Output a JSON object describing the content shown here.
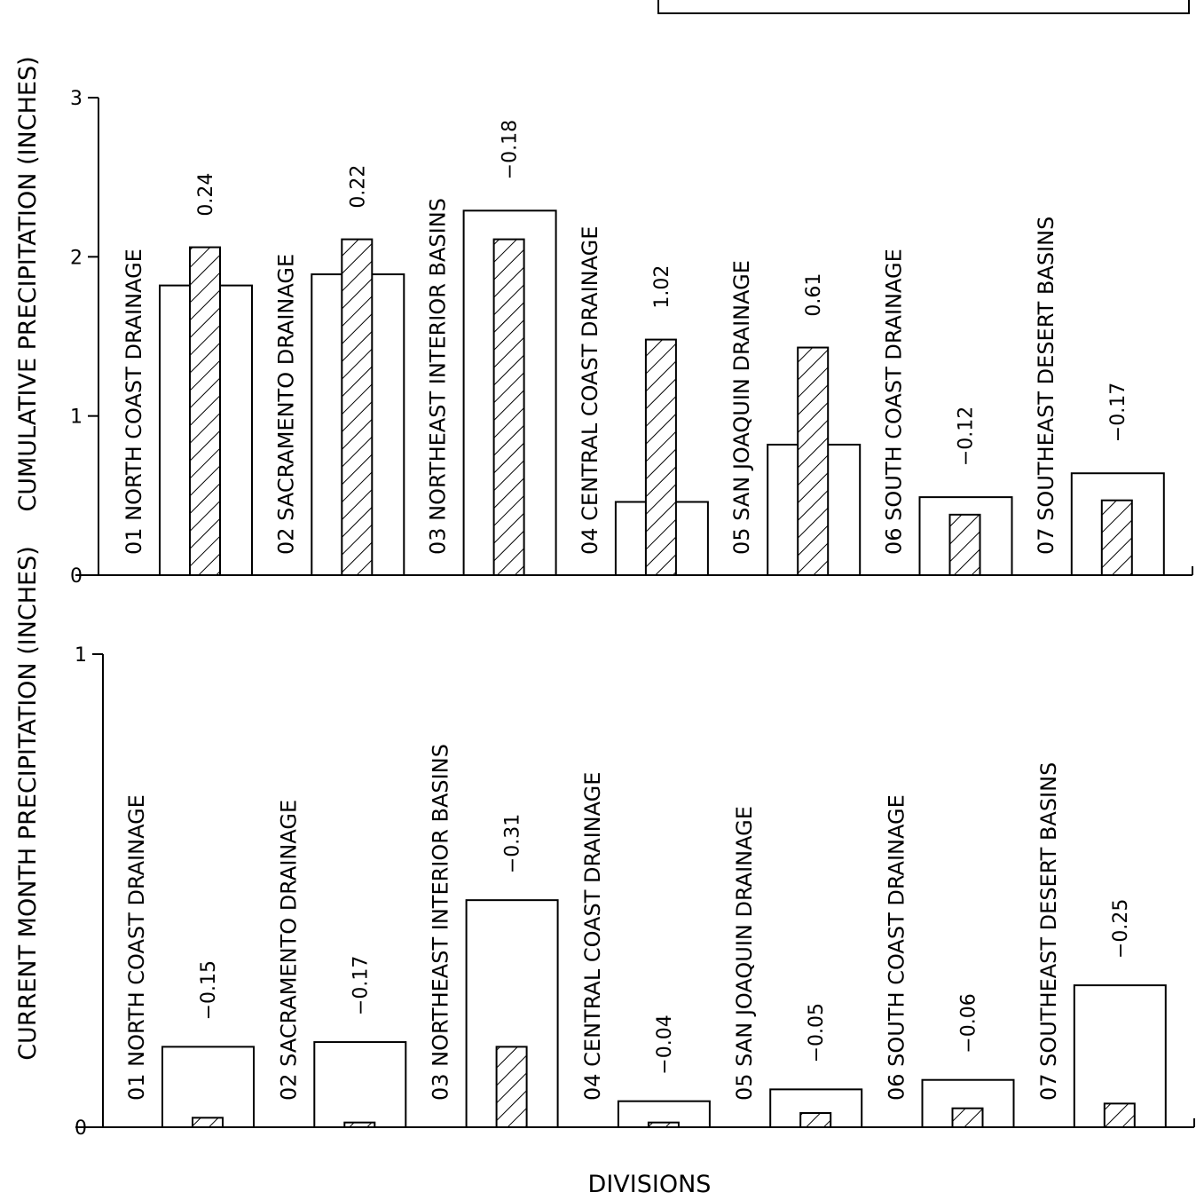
{
  "legend_box": {},
  "chart_data": [
    {
      "type": "bar",
      "ylabel": "CUMULATIVE PRECIPITATION (INCHES)",
      "ylim": [
        0,
        3
      ],
      "yticks": [
        0,
        1,
        2,
        3
      ],
      "categories": [
        "01 NORTH COAST DRAINAGE",
        "02 SACRAMENTO DRAINAGE",
        "03 NORTHEAST INTERIOR BASINS",
        "04 CENTRAL COAST DRAINAGE",
        "05 SAN JOAQUIN DRAINAGE",
        "06 SOUTH COAST DRAINAGE",
        "07 SOUTHEAST DESERT BASINS"
      ],
      "series": [
        {
          "style": "open",
          "values": [
            1.82,
            1.89,
            2.29,
            0.46,
            0.82,
            0.49,
            0.64
          ]
        },
        {
          "style": "hatched",
          "values": [
            2.06,
            2.11,
            2.11,
            1.48,
            1.43,
            0.38,
            0.47
          ]
        }
      ],
      "departures": [
        "0.24",
        "0.22",
        "−0.18",
        "1.02",
        "0.61",
        "−0.12",
        "−0.17"
      ]
    },
    {
      "type": "bar",
      "ylabel": "CURRENT MONTH PRECIPITATION (INCHES)",
      "xlabel": "DIVISIONS",
      "ylim": [
        0,
        1
      ],
      "yticks": [
        0,
        1
      ],
      "categories": [
        "01 NORTH COAST DRAINAGE",
        "02 SACRAMENTO DRAINAGE",
        "03 NORTHEAST INTERIOR BASINS",
        "04 CENTRAL COAST DRAINAGE",
        "05 SAN JOAQUIN DRAINAGE",
        "06 SOUTH COAST DRAINAGE",
        "07 SOUTHEAST DESERT BASINS"
      ],
      "series": [
        {
          "style": "open",
          "values": [
            0.17,
            0.18,
            0.48,
            0.055,
            0.08,
            0.1,
            0.3
          ]
        },
        {
          "style": "hatched",
          "values": [
            0.02,
            0.01,
            0.17,
            0.01,
            0.03,
            0.04,
            0.05
          ]
        }
      ],
      "departures": [
        "−0.15",
        "−0.17",
        "−0.31",
        "−0.04",
        "−0.05",
        "−0.06",
        "−0.25"
      ]
    }
  ]
}
